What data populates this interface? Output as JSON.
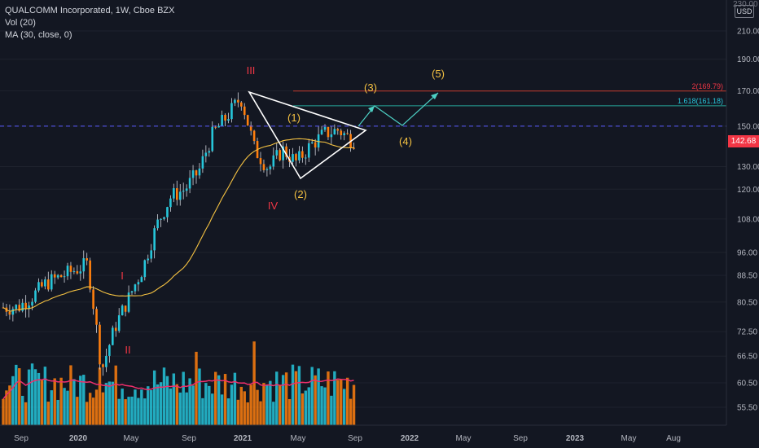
{
  "legend": {
    "symbol": "QUALCOMM Incorporated, 1W, Cboe BZX",
    "volume": "Vol (20)",
    "ma": "MA (30, close, 0)"
  },
  "currency": "USD",
  "last_price": "142.68",
  "top_label_clipped": "230.00",
  "colors": {
    "background": "#131722",
    "up": "#26c6da",
    "down": "#ff7f0e",
    "wick": "#d1d4dc",
    "ma_line": "#f5c242",
    "vol_ma": "#ef2f6c",
    "wave_red": "#f23645",
    "wave_yellow": "#f5c242",
    "fib_teal": "#26a69a",
    "dashed": "#5b5bff"
  },
  "chart_data": {
    "type": "candlestick",
    "interval": "1W",
    "y_axis_scale": "log",
    "y_ticks": [
      "55.50",
      "60.50",
      "66.50",
      "72.50",
      "80.50",
      "88.50",
      "96.00",
      "108.00",
      "120.00",
      "130.00",
      "142.68",
      "150.00",
      "170.00",
      "190.00",
      "210.00"
    ],
    "x_ticks": [
      "Sep",
      "2020",
      "May",
      "Sep",
      "2021",
      "May",
      "Sep",
      "2022",
      "May",
      "Sep",
      "2023",
      "May",
      "Aug"
    ],
    "price_path": [
      [
        "2019-09",
        79
      ],
      [
        "2019-10",
        82
      ],
      [
        "2019-11",
        86
      ],
      [
        "2019-12",
        88
      ],
      [
        "2020-01",
        90
      ],
      [
        "2020-02",
        92
      ],
      [
        "2020-03",
        63
      ],
      [
        "2020-04",
        74
      ],
      [
        "2020-05",
        82
      ],
      [
        "2020-06",
        91
      ],
      [
        "2020-07",
        106
      ],
      [
        "2020-08",
        117
      ],
      [
        "2020-09",
        120
      ],
      [
        "2020-10",
        128
      ],
      [
        "2020-11",
        146
      ],
      [
        "2020-12",
        155
      ],
      [
        "2021-01",
        166
      ],
      [
        "2021-02",
        138
      ],
      [
        "2021-03",
        129
      ],
      [
        "2021-04",
        138
      ],
      [
        "2021-05",
        132
      ],
      [
        "2021-06",
        140
      ],
      [
        "2021-07",
        146
      ],
      [
        "2021-08",
        148
      ],
      [
        "2021-09",
        142.68
      ]
    ],
    "moving_average_30": "overlay",
    "volume_20": "overlay",
    "levels": [
      {
        "label": "2(169.79)",
        "value": 169.79
      },
      {
        "label": "1.618(161.18)",
        "value": 161.18
      },
      {
        "label": "dashed",
        "value": 150
      }
    ],
    "wave_labels": {
      "impulse": [
        "I",
        "II",
        "III",
        "IV"
      ],
      "projection": [
        "(1)",
        "(2)",
        "(3)",
        "(4)",
        "(5)"
      ]
    }
  }
}
